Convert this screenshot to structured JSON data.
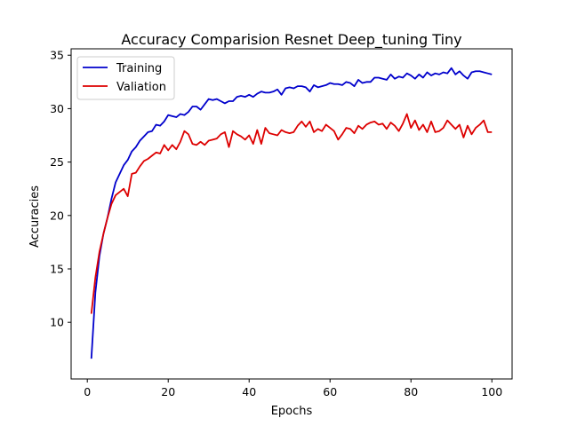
{
  "chart_data": {
    "type": "line",
    "title": "Accuracy Comparision Resnet Deep_tuning Tiny",
    "xlabel": "Epochs",
    "ylabel": "Accuracies",
    "xlim": [
      -4,
      105
    ],
    "ylim": [
      4.7,
      35.6
    ],
    "xticks": [
      0,
      20,
      40,
      60,
      80,
      100
    ],
    "yticks": [
      10,
      15,
      20,
      25,
      30,
      35
    ],
    "grid": false,
    "legend_position": "top-left",
    "series": [
      {
        "name": "Training",
        "color": "#0000cc",
        "x": [
          1,
          2,
          3,
          4,
          5,
          6,
          7,
          8,
          9,
          10,
          11,
          12,
          13,
          14,
          15,
          16,
          17,
          18,
          19,
          20,
          21,
          22,
          23,
          24,
          25,
          26,
          27,
          28,
          29,
          30,
          31,
          32,
          33,
          34,
          35,
          36,
          37,
          38,
          39,
          40,
          41,
          42,
          43,
          44,
          45,
          46,
          47,
          48,
          49,
          50,
          51,
          52,
          53,
          54,
          55,
          56,
          57,
          58,
          59,
          60,
          61,
          62,
          63,
          64,
          65,
          66,
          67,
          68,
          69,
          70,
          71,
          72,
          73,
          74,
          75,
          76,
          77,
          78,
          79,
          80,
          81,
          82,
          83,
          84,
          85,
          86,
          87,
          88,
          89,
          90,
          91,
          92,
          93,
          94,
          95,
          96,
          97,
          98,
          99,
          100
        ],
        "values": [
          6.6,
          12.8,
          16.2,
          18.3,
          19.8,
          21.6,
          23.1,
          23.9,
          24.7,
          25.2,
          26.0,
          26.4,
          27.0,
          27.4,
          27.8,
          27.9,
          28.5,
          28.4,
          28.8,
          29.4,
          29.3,
          29.2,
          29.5,
          29.4,
          29.7,
          30.2,
          30.2,
          29.9,
          30.4,
          30.9,
          30.8,
          30.9,
          30.7,
          30.5,
          30.7,
          30.7,
          31.1,
          31.2,
          31.1,
          31.3,
          31.1,
          31.4,
          31.6,
          31.5,
          31.5,
          31.6,
          31.8,
          31.3,
          31.9,
          32.0,
          31.9,
          32.1,
          32.1,
          32.0,
          31.6,
          32.2,
          32.0,
          32.1,
          32.2,
          32.4,
          32.3,
          32.3,
          32.2,
          32.5,
          32.4,
          32.1,
          32.7,
          32.4,
          32.5,
          32.5,
          32.9,
          32.9,
          32.8,
          32.7,
          33.2,
          32.8,
          33.0,
          32.9,
          33.3,
          33.1,
          32.8,
          33.2,
          32.9,
          33.4,
          33.1,
          33.3,
          33.2,
          33.4,
          33.3,
          33.8,
          33.2,
          33.5,
          33.1,
          32.8,
          33.4,
          33.5,
          33.5,
          33.4,
          33.3,
          33.2
        ]
      },
      {
        "name": "Valiation",
        "color": "#dd0000",
        "x": [
          1,
          2,
          3,
          4,
          5,
          6,
          7,
          8,
          9,
          10,
          11,
          12,
          13,
          14,
          15,
          16,
          17,
          18,
          19,
          20,
          21,
          22,
          23,
          24,
          25,
          26,
          27,
          28,
          29,
          30,
          31,
          32,
          33,
          34,
          35,
          36,
          37,
          38,
          39,
          40,
          41,
          42,
          43,
          44,
          45,
          46,
          47,
          48,
          49,
          50,
          51,
          52,
          53,
          54,
          55,
          56,
          57,
          58,
          59,
          60,
          61,
          62,
          63,
          64,
          65,
          66,
          67,
          68,
          69,
          70,
          71,
          72,
          73,
          74,
          75,
          76,
          77,
          78,
          79,
          80,
          81,
          82,
          83,
          84,
          85,
          86,
          87,
          88,
          89,
          90,
          91,
          92,
          93,
          94,
          95,
          96,
          97,
          98,
          99,
          100
        ],
        "values": [
          10.8,
          14.2,
          16.6,
          18.3,
          19.8,
          21.1,
          21.9,
          22.2,
          22.5,
          21.8,
          23.9,
          24.0,
          24.6,
          25.1,
          25.3,
          25.6,
          25.9,
          25.8,
          26.6,
          26.1,
          26.6,
          26.2,
          26.9,
          27.9,
          27.6,
          26.7,
          26.6,
          26.9,
          26.6,
          27.0,
          27.1,
          27.2,
          27.6,
          27.8,
          26.4,
          27.9,
          27.6,
          27.4,
          27.1,
          27.5,
          26.7,
          28.0,
          26.7,
          28.2,
          27.7,
          27.6,
          27.5,
          28.0,
          27.8,
          27.7,
          27.8,
          28.4,
          28.8,
          28.3,
          28.8,
          27.8,
          28.1,
          27.9,
          28.5,
          28.2,
          27.9,
          27.1,
          27.6,
          28.2,
          28.1,
          27.7,
          28.4,
          28.1,
          28.5,
          28.7,
          28.8,
          28.5,
          28.6,
          28.1,
          28.7,
          28.4,
          27.9,
          28.6,
          29.5,
          28.2,
          28.9,
          28.0,
          28.5,
          27.8,
          28.8,
          27.8,
          27.9,
          28.2,
          28.9,
          28.5,
          28.1,
          28.5,
          27.3,
          28.4,
          27.6,
          28.2,
          28.5,
          28.9,
          27.8,
          27.8
        ]
      }
    ]
  }
}
